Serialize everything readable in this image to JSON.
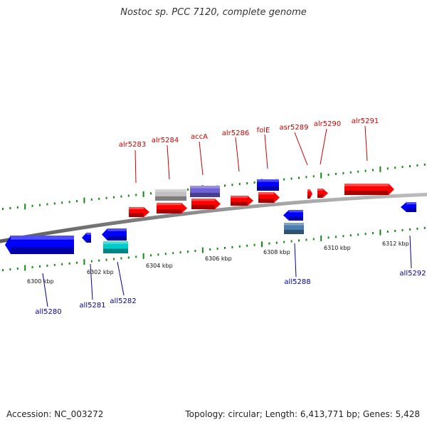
{
  "title": "Nostoc sp. PCC 7120, complete genome",
  "footer": {
    "accession": "Accession: NC_003272",
    "summary": "Topology: circular; Length: 6,413,771 bp; Genes: 5,428"
  },
  "colors": {
    "forward_gene": "#ff0000",
    "reverse_gene": "#0000ff",
    "forward_label": "#cc0000",
    "reverse_label": "#00009a",
    "tick": "#118811",
    "backbone": "#8a8a8a"
  },
  "scale": {
    "labels": [
      "6300 kbp",
      "6302 kbp",
      "6304 kbp",
      "6306 kbp",
      "6308 kbp",
      "6310 kbp",
      "6312 kbp"
    ]
  },
  "forward_genes": [
    {
      "name": "alr5283",
      "color": "#ff0000"
    },
    {
      "name": "alr5284",
      "color": "#ff0000"
    },
    {
      "name": "accA",
      "color": "#ff0000"
    },
    {
      "name": "alr5286",
      "color": "#ff0000"
    },
    {
      "name": "folE",
      "color": "#ff0000"
    },
    {
      "name": "asr5289",
      "color": "#ff0000"
    },
    {
      "name": "alr5290",
      "color": "#ff0000"
    },
    {
      "name": "alr5291",
      "color": "#ff0000"
    }
  ],
  "reverse_genes": [
    {
      "name": "all5280",
      "color": "#0000ff"
    },
    {
      "name": "all5281",
      "color": "#0000ff"
    },
    {
      "name": "all5282",
      "color": "#0000ff"
    },
    {
      "name": "all5288",
      "color": "#0000ff"
    },
    {
      "name": "all5292",
      "color": "#0000ff"
    }
  ],
  "extra_features": [
    {
      "color": "#c0c0c0"
    },
    {
      "color": "#7060d8"
    },
    {
      "color": "#0000ff"
    },
    {
      "color": "#00cccc"
    },
    {
      "color": "#4a7fb0"
    }
  ]
}
